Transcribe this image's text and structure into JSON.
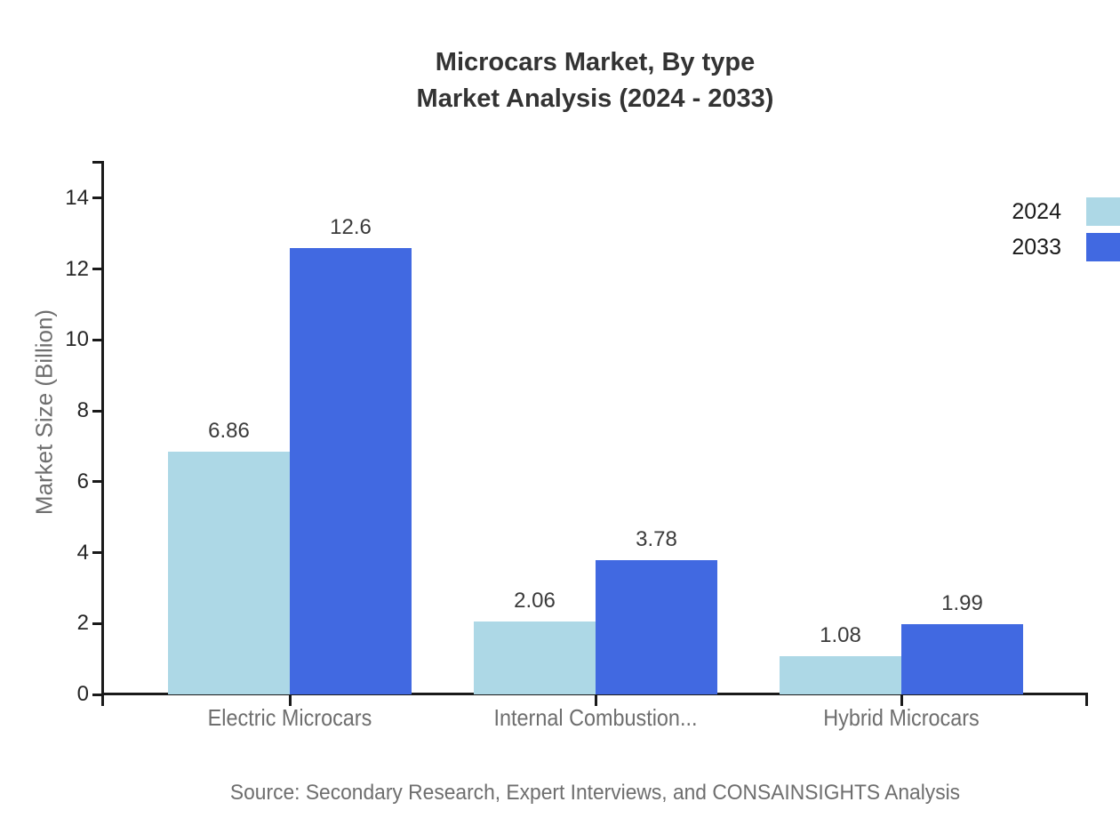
{
  "title": {
    "line1": "Microcars Market, By type",
    "line2": "Market Analysis (2024 - 2033)"
  },
  "legend": [
    {
      "label": "2024",
      "color": "#ADD8E6"
    },
    {
      "label": "2033",
      "color": "#4169E1"
    }
  ],
  "source": "Source: Secondary Research, Expert Interviews, and CONSAINSIGHTS Analysis",
  "chart_data": {
    "type": "bar",
    "categories": [
      "Electric Microcars",
      "Internal Combustion...",
      "Hybrid Microcars"
    ],
    "series": [
      {
        "name": "2024",
        "color": "#ADD8E6",
        "values": [
          6.86,
          2.06,
          1.08
        ],
        "labels": [
          "6.86",
          "2.06",
          "1.08"
        ]
      },
      {
        "name": "2033",
        "color": "#4169E1",
        "values": [
          12.6,
          3.78,
          1.99
        ],
        "labels": [
          "12.6",
          "3.78",
          "1.99"
        ]
      }
    ],
    "title": "Microcars Market, By type Market Analysis (2024 - 2033)",
    "xlabel": "",
    "ylabel": "Market Size (Billion)",
    "ylim": [
      0,
      15
    ],
    "yticks": [
      0,
      2,
      4,
      6,
      8,
      10,
      12,
      14
    ],
    "grid": false,
    "legend_position": "top-right"
  }
}
